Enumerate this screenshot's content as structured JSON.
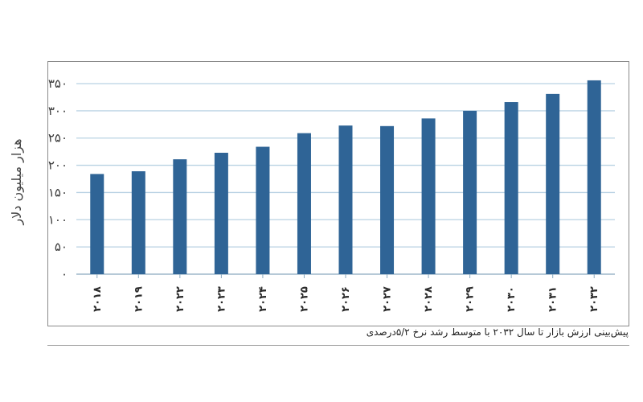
{
  "caption": "پیش‌بینی ارزش بازار تا سال ۲۰۳۲ با متوسط رشد نرخ ۵/۲درصدی",
  "chart_data": {
    "type": "bar",
    "ylabel": "هزار میلیون دلار",
    "ylim": [
      0,
      350
    ],
    "y_ticks": [
      0,
      50,
      100,
      150,
      200,
      250,
      300,
      350
    ],
    "y_tick_labels": [
      "۰",
      "۵۰",
      "۱۰۰",
      "۱۵۰",
      "۲۰۰",
      "۲۵۰",
      "۳۰۰",
      "۳۵۰"
    ],
    "grid": true,
    "bar_color": "#2f6496",
    "grid_color": "#b9d2e3",
    "categories": [
      "۲۰۱۸",
      "۲۰۱۹",
      "۲۰۲۲",
      "۲۰۲۳",
      "۲۰۲۴",
      "۲۰۲۵",
      "۲۰۲۶",
      "۲۰۲۷",
      "۲۰۲۸",
      "۲۰۲۹",
      "۲۰۳۰",
      "۲۰۳۱",
      "۲۰۳۲"
    ],
    "values": [
      184,
      189,
      211,
      223,
      234,
      259,
      273,
      272,
      286,
      300,
      316,
      331,
      356
    ]
  }
}
